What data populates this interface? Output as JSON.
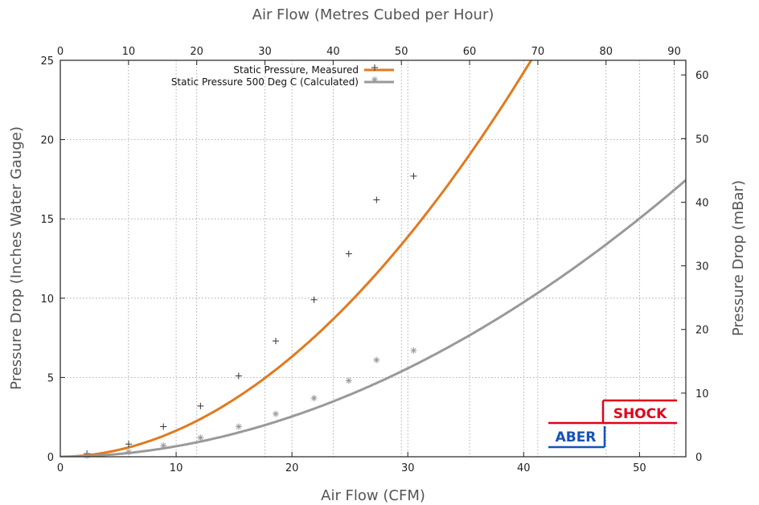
{
  "chart_data": {
    "type": "line",
    "title": "",
    "xlabel": "Air Flow (CFM)",
    "ylabel": "Pressure Drop (Inches Water Gauge)",
    "x2label": "Air Flow (Metres Cubed per Hour)",
    "y2label": "Pressure Drop (mBar)",
    "xlim": [
      0,
      54
    ],
    "ylim": [
      0,
      25
    ],
    "x2lim": [
      0,
      91.7
    ],
    "y2lim": [
      0,
      62.3
    ],
    "xticks": [
      0,
      10,
      20,
      30,
      40,
      50
    ],
    "yticks": [
      0,
      5,
      10,
      15,
      20,
      25
    ],
    "x2ticks": [
      0,
      10,
      20,
      30,
      40,
      50,
      60,
      70,
      80,
      90
    ],
    "y2ticks": [
      0,
      10,
      20,
      30,
      40,
      50,
      60
    ],
    "grid": true,
    "legend_position": "top",
    "series": [
      {
        "name": "Static Pressure, Measured",
        "color": "#e07a1f",
        "marker": "plus",
        "marker_color": "#333333",
        "points_x": [
          2.3,
          5.9,
          8.9,
          12.1,
          15.4,
          18.6,
          21.9,
          24.9,
          27.3,
          30.5
        ],
        "points_y": [
          0.2,
          0.8,
          1.9,
          3.2,
          5.1,
          7.3,
          9.9,
          12.8,
          16.2,
          17.7
        ],
        "fit_coef": 0.0189,
        "fit_exp": 1.94
      },
      {
        "name": "Static Pressure 500 Deg C (Calculated)",
        "color": "#999999",
        "marker": "star",
        "marker_color": "#999999",
        "points_x": [
          2.3,
          5.9,
          8.9,
          12.1,
          15.4,
          18.6,
          21.9,
          24.9,
          27.3,
          30.5
        ],
        "points_y": [
          0.07,
          0.3,
          0.7,
          1.2,
          1.9,
          2.7,
          3.7,
          4.8,
          6.1,
          6.7
        ],
        "fit_coef": 0.0076,
        "fit_exp": 1.94
      }
    ]
  },
  "logo": {
    "text_top": "SHOCK",
    "text_bottom": "ABER",
    "red": "#e3001b",
    "blue": "#1552b8"
  }
}
